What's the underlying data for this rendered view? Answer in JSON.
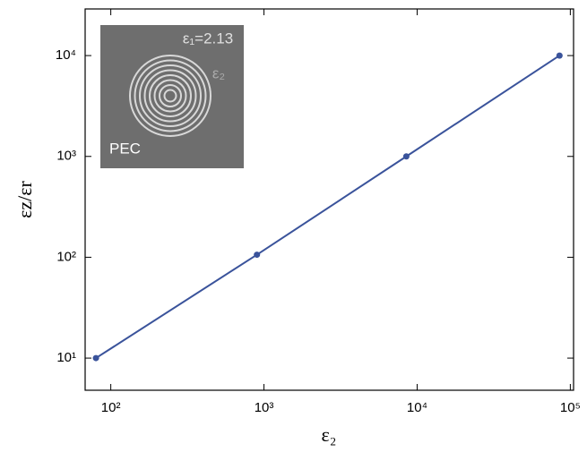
{
  "chart_data": {
    "type": "line",
    "xlabel": "ε₂",
    "ylabel": "εz/εr",
    "x": [
      80,
      900,
      8500,
      85000
    ],
    "series": [
      {
        "name": "εz/εr",
        "color": "#3a539b",
        "values": [
          10,
          106,
          1000,
          10000
        ]
      }
    ],
    "xscale": "log",
    "yscale": "log",
    "xlim": [
      68,
      105000
    ],
    "ylim": [
      4.8,
      29000
    ],
    "xticks": [
      {
        "value": 100,
        "label": "10²"
      },
      {
        "value": 1000,
        "label": "10³"
      },
      {
        "value": 10000,
        "label": "10⁴"
      },
      {
        "value": 100000,
        "label": "10⁵"
      }
    ],
    "yticks": [
      {
        "value": 10,
        "label": "10¹"
      },
      {
        "value": 100,
        "label": "10²"
      },
      {
        "value": 1000,
        "label": "10³"
      },
      {
        "value": 10000,
        "label": "10⁴"
      }
    ],
    "grid": false,
    "annotations": [
      "ε₁=2.13",
      "ε₂",
      "PEC"
    ]
  }
}
